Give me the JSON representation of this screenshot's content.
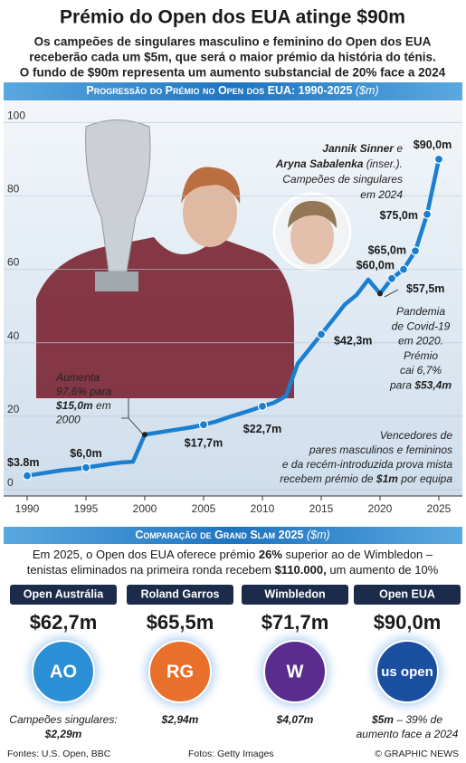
{
  "header": {
    "title": "Prémio do Open dos EUA atinge $90m",
    "subtitle": [
      "Os campeões de singulares masculino e feminino do Open dos EUA",
      "receberão cada um $5m, que será o maior prémio da história do ténis.",
      "O fundo de $90m representa um aumento substancial de 20% face a 2024"
    ]
  },
  "chart_data": {
    "type": "line",
    "title": "Progressão do Prémio no Open dos EUA: 1990-2025",
    "units": "($m)",
    "x": [
      1990,
      1991,
      1992,
      1993,
      1994,
      1995,
      1996,
      1997,
      1998,
      1999,
      2000,
      2001,
      2002,
      2003,
      2004,
      2005,
      2006,
      2007,
      2008,
      2009,
      2010,
      2011,
      2012,
      2013,
      2014,
      2015,
      2016,
      2017,
      2018,
      2019,
      2020,
      2021,
      2022,
      2023,
      2024,
      2025
    ],
    "series": [
      {
        "name": "Prémio",
        "color": "#1a7fd0",
        "values": [
          3.8,
          4.3,
          4.8,
          5.3,
          5.6,
          6.0,
          6.5,
          7.0,
          7.4,
          7.6,
          15.0,
          15.5,
          16.0,
          16.5,
          17.0,
          17.7,
          18.5,
          19.6,
          20.6,
          21.6,
          22.7,
          23.7,
          25.5,
          34.3,
          38.3,
          42.3,
          46.3,
          50.4,
          53.0,
          57.2,
          53.4,
          57.5,
          60.0,
          65.0,
          75.0,
          90.0
        ],
        "value_labels": [
          "$3.8m",
          null,
          null,
          null,
          null,
          "$6,0m",
          null,
          null,
          null,
          null,
          null,
          null,
          null,
          null,
          null,
          "$17,7m",
          null,
          null,
          null,
          null,
          "$22,7m",
          null,
          null,
          null,
          null,
          "$42,3m",
          null,
          null,
          null,
          null,
          null,
          "$57,5m",
          "$60,0m",
          "$65,0m",
          "$75,0m",
          "$90,0m"
        ]
      }
    ],
    "xlim": [
      1988,
      2027
    ],
    "xticks": [
      1990,
      1995,
      2000,
      2005,
      2010,
      2015,
      2020,
      2025
    ],
    "ylim": [
      0,
      105
    ],
    "yticks": [
      0,
      20,
      40,
      60,
      80,
      100
    ],
    "grid": true,
    "annotations": [
      {
        "lines": [
          "Aumenta",
          "97,6% para",
          [
            {
              "bold": "$15,0m"
            },
            " em"
          ],
          "2000"
        ]
      },
      {
        "lines": [
          [
            {
              "bold": "Jannik Sinner"
            },
            " e"
          ],
          [
            {
              "bold": "Aryna Sabalenka"
            },
            " (inser.)."
          ],
          "Campeões de singulares",
          "em 2024"
        ]
      },
      {
        "lines": [
          "Pandemia",
          "de Covid-19",
          "em 2020.",
          "Prémio",
          "cai 6,7%",
          [
            "para ",
            {
              "bold": "$53,4m"
            }
          ]
        ]
      },
      {
        "lines": [
          "Vencedores de",
          "pares masculinos e femininos",
          "e da recém-introduzida prova mista",
          [
            "recebem prémio de ",
            {
              "bold": "$1m"
            },
            " por equipa"
          ]
        ]
      }
    ]
  },
  "comparison": {
    "title": "Comparação de Grand Slam 2025",
    "units": "($m)",
    "intro": [
      [
        "Em 2025, o Open dos EUA oferece prémio ",
        {
          "bold": "26%"
        },
        " superior ao de Wimbledon –"
      ],
      [
        "tenistas eliminados na primeira ronda recebem ",
        {
          "bold": "$110.000,"
        },
        " um aumento de 10%"
      ]
    ],
    "items": [
      {
        "name": "Open Austrália",
        "prize": "$62,7m",
        "logo": "AO",
        "note": [
          "Campeões singulares:",
          {
            "bold": "$2,29m"
          }
        ]
      },
      {
        "name": "Roland Garros",
        "prize": "$65,5m",
        "logo": "RG",
        "note": [
          {
            "bold": "$2,94m"
          }
        ]
      },
      {
        "name": "Wimbledon",
        "prize": "$71,7m",
        "logo": "W",
        "note": [
          {
            "bold": "$4,07m"
          }
        ]
      },
      {
        "name": "Open EUA",
        "prize": "$90,0m",
        "logo": "us open",
        "note": [
          [
            {
              "bold": "$5m"
            },
            " – 39% de"
          ],
          "aumento face a 2024"
        ]
      }
    ]
  },
  "footer": {
    "sources": "Fontes: U.S. Open, BBC",
    "photos": "Fotos: Getty Images",
    "credit": "© GRAPHIC NEWS"
  }
}
